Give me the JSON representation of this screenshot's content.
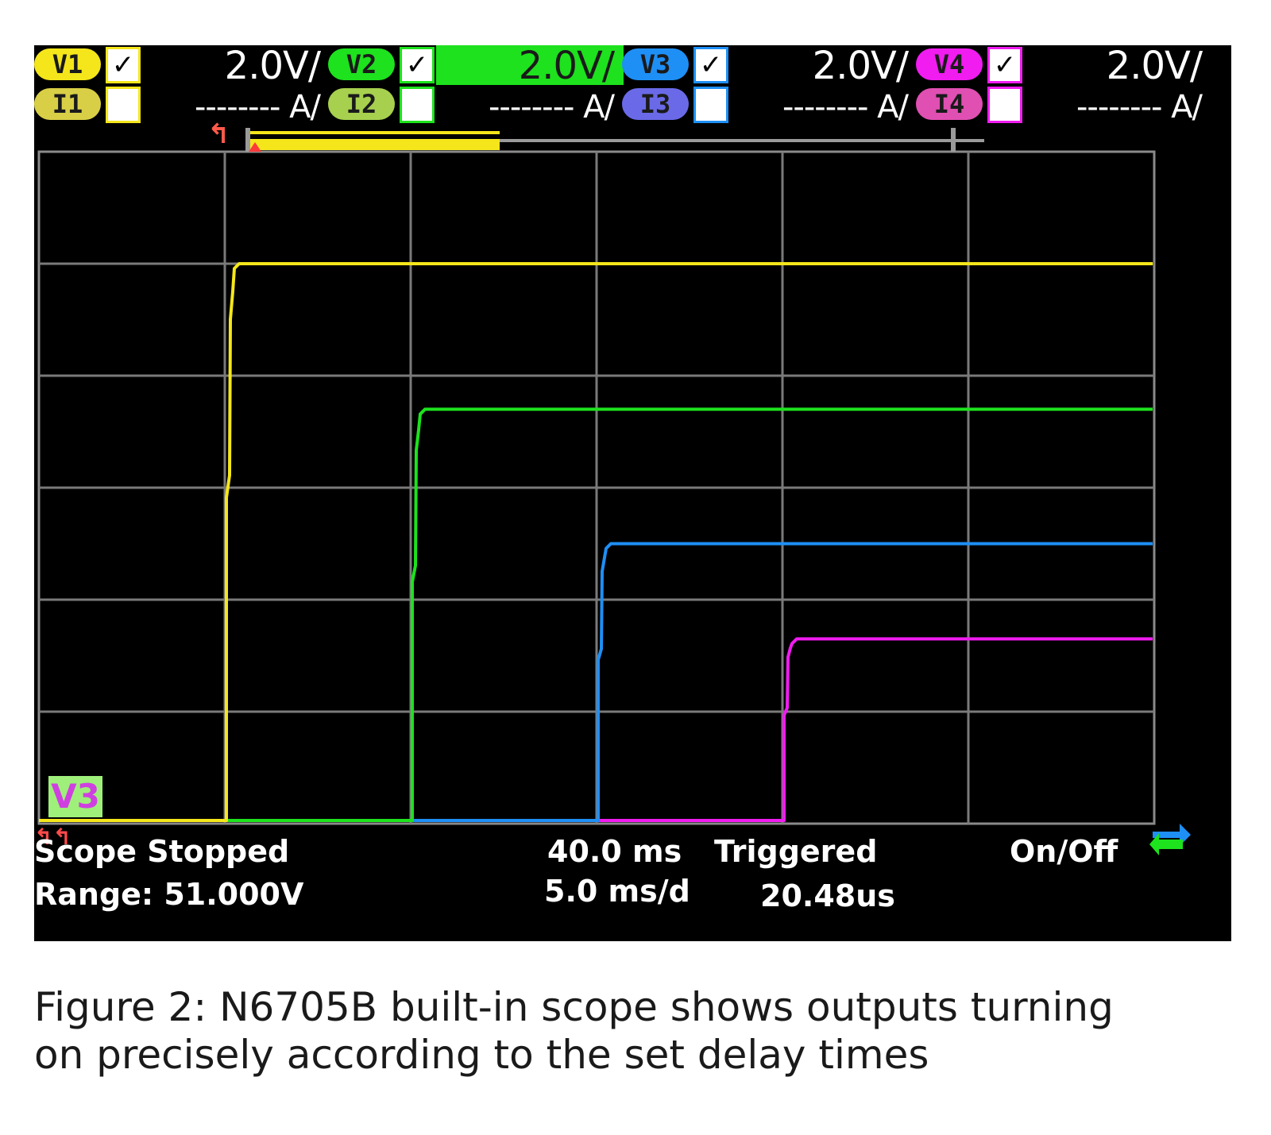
{
  "channels": [
    {
      "voltage_label": "V1",
      "current_label": "I1",
      "voltage_checked": true,
      "current_checked": false,
      "volts_per_div": "2.0V/",
      "amps_per_div": "-------- A/",
      "color": "#f4e61a",
      "current_color": "#d9cf46"
    },
    {
      "voltage_label": "V2",
      "current_label": "I2",
      "voltage_checked": true,
      "current_checked": false,
      "volts_per_div": "2.0V/",
      "amps_per_div": "-------- A/",
      "color": "#1de21d",
      "current_color": "#a6d04e"
    },
    {
      "voltage_label": "V3",
      "current_label": "I3",
      "voltage_checked": true,
      "current_checked": false,
      "volts_per_div": "2.0V/",
      "amps_per_div": "-------- A/",
      "color": "#1e8ff5",
      "current_color": "#6a6ae8"
    },
    {
      "voltage_label": "V4",
      "current_label": "I4",
      "voltage_checked": true,
      "current_checked": false,
      "volts_per_div": "2.0V/",
      "amps_per_div": "-------- A/",
      "color": "#f01cf0",
      "current_color": "#e04fb2"
    }
  ],
  "check_mark": "✓",
  "selected_voltage_div": 1,
  "marker_label": "V3",
  "status": {
    "state": "Scope Stopped",
    "range": "Range: 51.000V",
    "time_offset": "40.0 ms",
    "time_per_div": "5.0 ms/d",
    "trigger_state": "Triggered",
    "trigger_time": "20.48us",
    "mode": "On/Off"
  },
  "caption": {
    "line1": "Figure 2: N6705B built-in scope shows outputs turning",
    "line2": "on precisely according to the set delay times"
  },
  "chart_data": {
    "type": "line",
    "x_divisions": 6,
    "y_divisions": 6,
    "x_units": "ms",
    "y_units": "V",
    "grid": true,
    "traces": [
      {
        "channel": "V1",
        "turn_on_div": 1.0,
        "level_div": 5.0,
        "color": "#f4e61a"
      },
      {
        "channel": "V2",
        "turn_on_div": 2.0,
        "level_div": 3.7,
        "color": "#1de21d"
      },
      {
        "channel": "V3",
        "turn_on_div": 3.0,
        "level_div": 2.5,
        "color": "#1e8ff5"
      },
      {
        "channel": "V4",
        "turn_on_div": 4.0,
        "level_div": 1.65,
        "color": "#f01cf0"
      }
    ]
  }
}
